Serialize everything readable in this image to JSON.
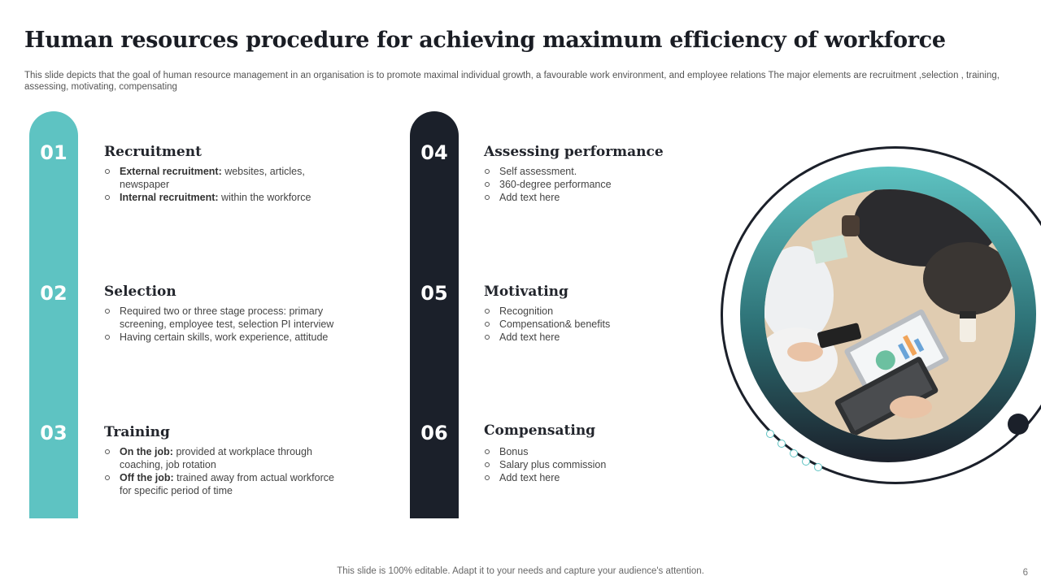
{
  "title": "Human resources procedure for achieving maximum efficiency of workforce",
  "subtitle": "This slide depicts that the goal of human resource management in an organisation is to promote maximal individual growth, a favourable work environment, and  employee relations The major elements are recruitment ,selection , training, assessing, motivating, compensating",
  "items": [
    {
      "num": "01",
      "title": "Recruitment",
      "bullets": [
        {
          "bold": "External recruitment:",
          "text": " websites, articles, newspaper"
        },
        {
          "bold": "Internal recruitment:",
          "text": " within the workforce"
        }
      ]
    },
    {
      "num": "02",
      "title": "Selection",
      "bullets": [
        {
          "bold": "",
          "text": "Required two or three stage process: primary screening, employee test, selection PI interview"
        },
        {
          "bold": "",
          "text": "Having  certain skills, work experience,  attitude"
        }
      ]
    },
    {
      "num": "03",
      "title": "Training",
      "bullets": [
        {
          "bold": "On the job:",
          "text": " provided  at workplace through coaching, job rotation"
        },
        {
          "bold": "Off the job:",
          "text": " trained away from actual workforce for specific period of time"
        }
      ]
    },
    {
      "num": "04",
      "title": "Assessing performance",
      "bullets": [
        {
          "bold": "",
          "text": "Self assessment."
        },
        {
          "bold": "",
          "text": "360-degree  performance"
        },
        {
          "bold": "",
          "text": "Add text here"
        }
      ]
    },
    {
      "num": "05",
      "title": "Motivating",
      "bullets": [
        {
          "bold": "",
          "text": "Recognition"
        },
        {
          "bold": "",
          "text": "Compensation& benefits"
        },
        {
          "bold": "",
          "text": "Add text here"
        }
      ]
    },
    {
      "num": "06",
      "title": "Compensating",
      "bullets": [
        {
          "bold": "",
          "text": "Bonus"
        },
        {
          "bold": "",
          "text": "Salary plus commission"
        },
        {
          "bold": "",
          "text": "Add text here"
        }
      ]
    }
  ],
  "footer": "This slide is 100% editable. Adapt it to your needs and capture your audience's attention.",
  "page_number": "6",
  "colors": {
    "teal": "#5ec3c2",
    "dark": "#1b202a"
  },
  "image": {
    "icon": "meeting-photo-icon"
  }
}
